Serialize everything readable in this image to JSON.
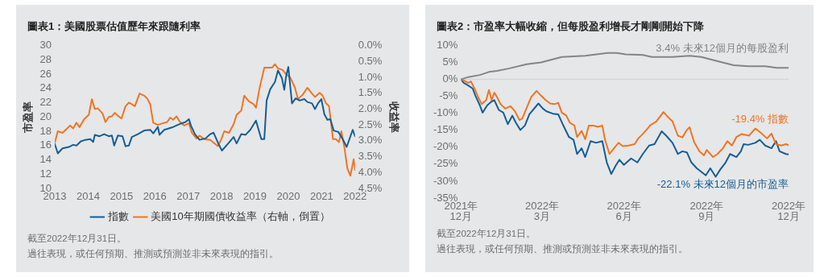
{
  "chart_data": [
    {
      "type": "line",
      "title": "圖表1：美國股票估值歷年來跟隨利率",
      "ylabel": "市盈率",
      "y2label": "收益率",
      "xlim": [
        2013,
        2022
      ],
      "xticks": [
        2013,
        2014,
        2015,
        2016,
        2017,
        2018,
        2019,
        2020,
        2021,
        2022
      ],
      "ylim": [
        10,
        30
      ],
      "yticks": [
        10,
        12,
        14,
        16,
        18,
        20,
        22,
        24,
        26,
        28,
        30
      ],
      "y2lim": [
        4.5,
        0
      ],
      "y2ticks": [
        {
          "value": 0,
          "label": "0.0%"
        },
        {
          "value": 0.5,
          "label": "0.5%"
        },
        {
          "value": 1,
          "label": "1.0%"
        },
        {
          "value": 1.5,
          "label": "1.5%"
        },
        {
          "value": 2,
          "label": "2.0%"
        },
        {
          "value": 2.5,
          "label": "2.5%"
        },
        {
          "value": 3,
          "label": "3.0%"
        },
        {
          "value": 3.5,
          "label": "3.5%"
        },
        {
          "value": 4,
          "label": "4.0%"
        },
        {
          "value": 4.5,
          "label": "4.5%"
        }
      ],
      "legend": "bottom",
      "annotations": [
        "截至2022年12月31日。",
        "過往表現，或任何預期、推測或預測並非未來表現的指引。"
      ],
      "series": [
        {
          "name": "指數",
          "color": "#135e96",
          "x": [
            2013.0,
            2013.09,
            2013.23,
            2013.42,
            2013.55,
            2013.65,
            2013.78,
            2013.92,
            2014.06,
            2014.15,
            2014.2,
            2014.34,
            2014.48,
            2014.62,
            2014.71,
            2014.78,
            2014.89,
            2015.03,
            2015.12,
            2015.22,
            2015.31,
            2015.49,
            2015.68,
            2015.86,
            2015.95,
            2016.09,
            2016.14,
            2016.28,
            2016.55,
            2016.74,
            2016.92,
            2017.02,
            2017.08,
            2017.2,
            2017.34,
            2017.52,
            2017.66,
            2017.76,
            2017.89,
            2018.01,
            2018.22,
            2018.36,
            2018.45,
            2018.59,
            2018.72,
            2018.86,
            2019.03,
            2019.19,
            2019.28,
            2019.35,
            2019.46,
            2019.6,
            2019.69,
            2019.81,
            2019.88,
            2019.93,
            2020.0,
            2020.11,
            2020.22,
            2020.34,
            2020.48,
            2020.57,
            2020.71,
            2020.8,
            2020.89,
            2020.99,
            2021.08,
            2021.17,
            2021.26,
            2021.36,
            2021.5,
            2021.63,
            2021.75,
            2021.93,
            2022.0
          ],
          "values": [
            16.2,
            14.9,
            15.6,
            15.8,
            16.1,
            16.0,
            16.6,
            16.8,
            16.9,
            16.5,
            17.5,
            17.3,
            17.6,
            17.3,
            17.4,
            16.0,
            17.4,
            17.3,
            15.9,
            16.0,
            17.2,
            17.6,
            18.1,
            18.2,
            17.7,
            18.6,
            17.5,
            18.2,
            18.6,
            19.0,
            19.3,
            19.7,
            18.8,
            17.6,
            16.8,
            17.0,
            17.6,
            17.8,
            16.4,
            15.3,
            16.4,
            17.2,
            16.3,
            17.6,
            17.5,
            18.2,
            19.5,
            16.9,
            16.9,
            22.3,
            23.9,
            24.9,
            26.5,
            25.4,
            23.8,
            25.6,
            27.0,
            21.9,
            22.6,
            22.3,
            22.5,
            22.1,
            21.9,
            21.1,
            21.9,
            22.5,
            20.4,
            19.6,
            19.7,
            18.1,
            17.9,
            16.9,
            15.8,
            18.2,
            17.3
          ]
        },
        {
          "name": "美國10年期國債收益率（右軸，倒置）",
          "color": "#ee7523",
          "axis": "y2",
          "x": [
            2013.0,
            2013.09,
            2013.23,
            2013.37,
            2013.46,
            2013.55,
            2013.65,
            2013.74,
            2013.88,
            2014.02,
            2014.11,
            2014.2,
            2014.29,
            2014.43,
            2014.52,
            2014.62,
            2014.71,
            2014.8,
            2014.89,
            2015.0,
            2015.12,
            2015.22,
            2015.31,
            2015.4,
            2015.54,
            2015.68,
            2015.77,
            2015.86,
            2015.95,
            2016.09,
            2016.23,
            2016.37,
            2016.46,
            2016.55,
            2016.65,
            2016.74,
            2016.88,
            2017.02,
            2017.11,
            2017.25,
            2017.34,
            2017.48,
            2017.66,
            2017.76,
            2017.89,
            2017.99,
            2018.08,
            2018.22,
            2018.36,
            2018.45,
            2018.59,
            2018.68,
            2018.82,
            2018.96,
            2019.03,
            2019.14,
            2019.28,
            2019.51,
            2019.6,
            2019.69,
            2019.83,
            2019.93,
            2020.06,
            2020.2,
            2020.29,
            2020.43,
            2020.57,
            2020.71,
            2020.8,
            2020.94,
            2021.03,
            2021.13,
            2021.22,
            2021.34,
            2021.43,
            2021.52,
            2021.59,
            2021.68,
            2021.77,
            2021.86,
            2021.96,
            2022.0
          ],
          "values": [
            3.06,
            2.7,
            2.75,
            2.61,
            2.52,
            2.61,
            2.43,
            2.57,
            2.32,
            2.18,
            1.69,
            2.0,
            1.98,
            2.14,
            2.41,
            2.25,
            2.23,
            2.12,
            2.21,
            2.3,
            1.91,
            1.8,
            1.85,
            1.91,
            1.51,
            1.58,
            1.67,
            1.85,
            2.43,
            2.5,
            2.45,
            2.41,
            2.27,
            2.34,
            2.23,
            2.39,
            2.52,
            2.45,
            2.75,
            2.93,
            2.84,
            2.95,
            2.97,
            3.06,
            3.17,
            2.95,
            2.7,
            2.75,
            2.48,
            2.18,
            2.05,
            1.58,
            1.76,
            1.85,
            1.96,
            1.33,
            0.7,
            0.7,
            0.59,
            0.72,
            0.77,
            0.9,
            1.01,
            1.33,
            1.69,
            1.55,
            1.33,
            1.51,
            1.62,
            1.49,
            1.58,
            1.82,
            1.91,
            2.95,
            2.95,
            3.04,
            2.7,
            3.2,
            3.87,
            4.1,
            3.58,
            3.92
          ]
        }
      ]
    },
    {
      "type": "line",
      "title": "圖表2：市盈率大幅收縮，但每股盈利增長才剛剛開始下降",
      "xlim": [
        "2021-12-31",
        "2022-12-30"
      ],
      "xticks": [
        {
          "value": "2021-12-31",
          "label": "2021年\n12月"
        },
        {
          "value": "2022-03-31",
          "label": "2022年\n3月"
        },
        {
          "value": "2022-06-30",
          "label": "2022年\n6月"
        },
        {
          "value": "2022-09-30",
          "label": "2022年\n9月"
        },
        {
          "value": "2022-12-30",
          "label": "2022年\n12月"
        }
      ],
      "ylim": [
        -35,
        10
      ],
      "yticks": [
        {
          "value": -35,
          "label": "-35%"
        },
        {
          "value": -30,
          "label": "-30%"
        },
        {
          "value": -25,
          "label": "-25%"
        },
        {
          "value": -20,
          "label": "-20%"
        },
        {
          "value": -15,
          "label": "-15%"
        },
        {
          "value": -10,
          "label": "-10%"
        },
        {
          "value": -5,
          "label": "-5%"
        },
        {
          "value": 0,
          "label": "0%"
        },
        {
          "value": 5,
          "label": "5%"
        },
        {
          "value": 10,
          "label": "10%"
        }
      ],
      "ref_lines": [
        {
          "axis": "y",
          "value": 0,
          "color": "#d4d5d6"
        }
      ],
      "annotations": [
        "截至2022年12月31日。",
        "過往表現，或任何預期、推測或預測並非未來表現的指引。"
      ],
      "series": [
        {
          "name": "3.4% 未來12個月的每股盈利",
          "color": "#858585",
          "x": [
            "2021-12-31",
            "2022-01-08",
            "2022-01-21",
            "2022-01-31",
            "2022-02-09",
            "2022-02-22",
            "2022-03-14",
            "2022-03-30",
            "2022-04-22",
            "2022-05-18",
            "2022-06-12",
            "2022-06-22",
            "2022-07-02",
            "2022-07-21",
            "2022-07-31",
            "2022-08-23",
            "2022-09-11",
            "2022-09-24",
            "2022-10-13",
            "2022-10-30",
            "2022-11-15",
            "2022-12-04",
            "2022-12-17",
            "2022-12-30"
          ],
          "values": [
            0,
            0.7,
            1.3,
            2.2,
            2.5,
            3.2,
            4.5,
            5.0,
            6.6,
            7.0,
            7.8,
            7.8,
            7.4,
            7.2,
            6.6,
            6.6,
            7.0,
            6.6,
            5.3,
            4.2,
            3.9,
            3.9,
            3.4,
            3.4
          ]
        },
        {
          "name": "-19.4% 指數",
          "color": "#ee7523",
          "x": [
            "2021-12-31",
            "2022-01-03",
            "2022-01-08",
            "2022-01-11",
            "2022-01-15",
            "2022-01-19",
            "2022-01-23",
            "2022-01-28",
            "2022-01-31",
            "2022-02-03",
            "2022-02-06",
            "2022-02-09",
            "2022-02-13",
            "2022-02-18",
            "2022-02-24",
            "2022-03-01",
            "2022-03-06",
            "2022-03-09",
            "2022-03-14",
            "2022-03-19",
            "2022-03-25",
            "2022-03-30",
            "2022-04-04",
            "2022-04-09",
            "2022-04-14",
            "2022-04-18",
            "2022-04-22",
            "2022-04-27",
            "2022-05-01",
            "2022-05-06",
            "2022-05-09",
            "2022-05-14",
            "2022-05-18",
            "2022-05-22",
            "2022-05-27",
            "2022-06-01",
            "2022-06-06",
            "2022-06-09",
            "2022-06-14",
            "2022-06-19",
            "2022-06-24",
            "2022-06-29",
            "2022-07-05",
            "2022-07-12",
            "2022-07-16",
            "2022-07-21",
            "2022-07-26",
            "2022-07-29",
            "2022-08-05",
            "2022-08-13",
            "2022-08-18",
            "2022-08-23",
            "2022-08-29",
            "2022-09-03",
            "2022-09-08",
            "2022-09-11",
            "2022-09-16",
            "2022-09-22",
            "2022-09-27",
            "2022-09-30",
            "2022-10-07",
            "2022-10-12",
            "2022-10-18",
            "2022-10-23",
            "2022-10-28",
            "2022-11-02",
            "2022-11-08",
            "2022-11-16",
            "2022-11-23",
            "2022-11-29",
            "2022-12-06",
            "2022-12-11",
            "2022-12-16",
            "2022-12-22",
            "2022-12-27",
            "2022-12-30"
          ],
          "values": [
            0,
            -0.3,
            -1.0,
            -0.6,
            -2.7,
            -5.2,
            -7.3,
            -6.1,
            -3.1,
            -6.1,
            -3.9,
            -5.2,
            -7.3,
            -8.6,
            -7.9,
            -9.4,
            -12.0,
            -11.6,
            -8.4,
            -5.2,
            -3.4,
            -4.8,
            -6.1,
            -7.1,
            -7.3,
            -6.9,
            -9.8,
            -10.7,
            -12.8,
            -13.6,
            -17.0,
            -15.2,
            -17.6,
            -13.6,
            -13.6,
            -14.0,
            -13.6,
            -17.8,
            -22.0,
            -20.3,
            -18.7,
            -19.7,
            -19.5,
            -19.1,
            -17.4,
            -16.1,
            -14.6,
            -13.6,
            -12.4,
            -9.6,
            -11.1,
            -12.4,
            -16.6,
            -17.1,
            -14.9,
            -14.1,
            -18.5,
            -21.2,
            -22.4,
            -20.8,
            -22.9,
            -22.0,
            -20.3,
            -18.2,
            -19.5,
            -17.0,
            -16.1,
            -16.6,
            -14.5,
            -15.7,
            -17.4,
            -16.0,
            -19.1,
            -19.5,
            -19.1,
            -19.4
          ]
        },
        {
          "name": "-22.1% 未來12個月的市盈率",
          "color": "#135e96",
          "x": [
            "2021-12-31",
            "2022-01-03",
            "2022-01-08",
            "2022-01-13",
            "2022-01-16",
            "2022-01-21",
            "2022-01-24",
            "2022-01-29",
            "2022-02-03",
            "2022-02-06",
            "2022-02-11",
            "2022-02-16",
            "2022-02-21",
            "2022-02-26",
            "2022-03-02",
            "2022-03-07",
            "2022-03-12",
            "2022-03-17",
            "2022-03-27",
            "2022-04-01",
            "2022-04-05",
            "2022-04-12",
            "2022-04-18",
            "2022-04-23",
            "2022-04-30",
            "2022-05-05",
            "2022-05-09",
            "2022-05-14",
            "2022-05-18",
            "2022-05-24",
            "2022-05-30",
            "2022-06-06",
            "2022-06-11",
            "2022-06-16",
            "2022-06-21",
            "2022-06-25",
            "2022-06-30",
            "2022-07-08",
            "2022-07-15",
            "2022-07-21",
            "2022-07-28",
            "2022-08-03",
            "2022-08-11",
            "2022-08-16",
            "2022-08-23",
            "2022-08-29",
            "2022-09-03",
            "2022-09-08",
            "2022-09-13",
            "2022-09-19",
            "2022-09-29",
            "2022-10-04",
            "2022-10-10",
            "2022-10-15",
            "2022-10-21",
            "2022-10-26",
            "2022-11-02",
            "2022-11-07",
            "2022-11-10",
            "2022-11-15",
            "2022-11-23",
            "2022-11-28",
            "2022-12-04",
            "2022-12-11",
            "2022-12-16",
            "2022-12-20",
            "2022-12-27",
            "2022-12-30"
          ],
          "values": [
            0,
            -1.0,
            -1.8,
            -2.7,
            -4.8,
            -7.7,
            -9.8,
            -7.7,
            -6.5,
            -6.1,
            -9.0,
            -9.8,
            -13.2,
            -10.7,
            -12.8,
            -14.9,
            -13.6,
            -10.3,
            -7.1,
            -8.6,
            -9.4,
            -10.1,
            -10.3,
            -13.2,
            -17.0,
            -17.8,
            -22.0,
            -20.3,
            -22.9,
            -18.2,
            -18.7,
            -18.2,
            -24.5,
            -27.9,
            -25.4,
            -23.7,
            -25.2,
            -23.3,
            -24.5,
            -22.0,
            -19.5,
            -19.1,
            -15.3,
            -16.6,
            -18.7,
            -22.0,
            -21.2,
            -21.5,
            -24.5,
            -26.2,
            -28.3,
            -26.2,
            -28.7,
            -26.6,
            -24.5,
            -22.0,
            -22.9,
            -21.2,
            -19.1,
            -19.3,
            -18.7,
            -17.8,
            -19.5,
            -20.3,
            -18.2,
            -21.2,
            -22.0,
            -22.1
          ]
        }
      ]
    }
  ]
}
